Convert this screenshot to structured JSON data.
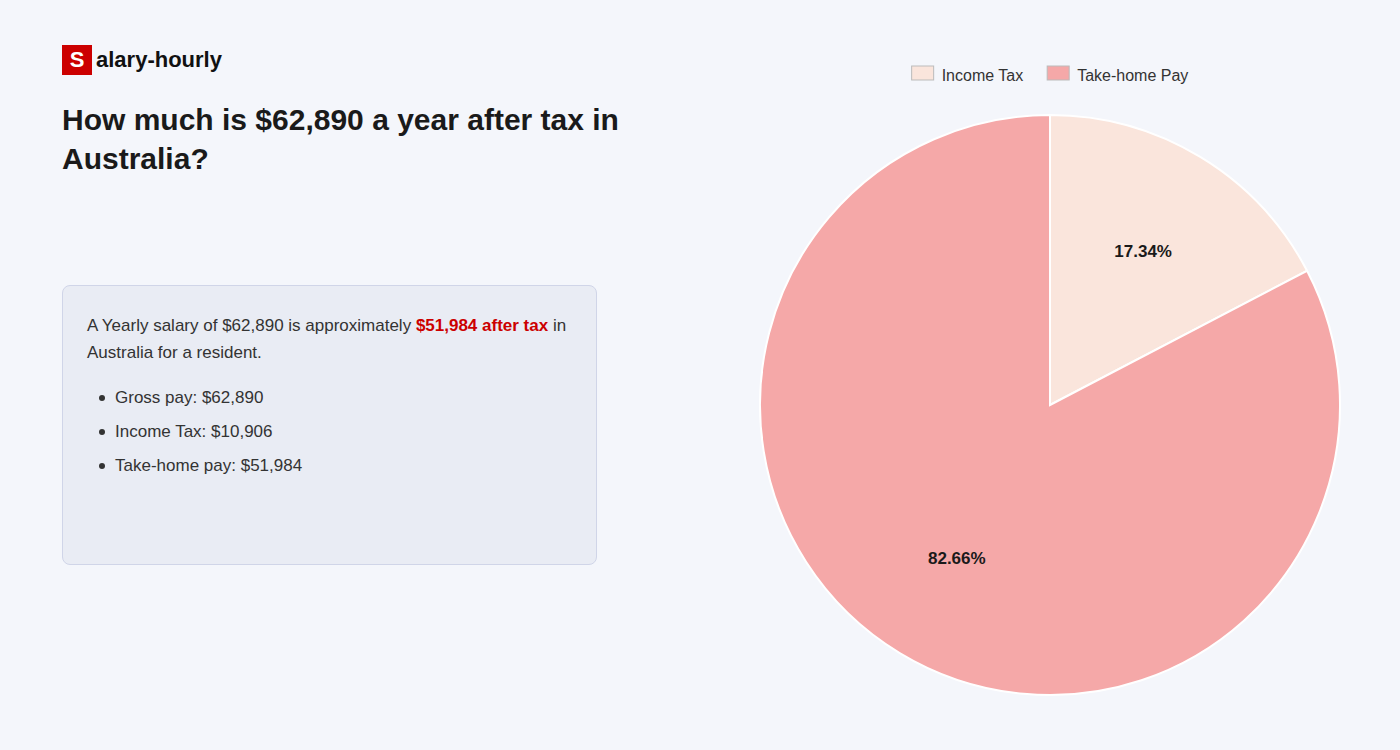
{
  "chart_data": {
    "type": "pie",
    "title": "How much is $62,890 a year after tax in Australia?",
    "annotations": [
      {
        "text": "S",
        "color": "#cc0000"
      },
      {
        "text": "alary-hourly"
      },
      {
        "text": "A Yearly salary of $62,890 is approximately "
      },
      {
        "text": "$51,984 after tax",
        "color": "#cc0000"
      },
      {
        "text": " in"
      },
      {
        "text": "Australia for a resident."
      },
      {
        "text": "Gross pay: $62,890"
      },
      {
        "text": "Income Tax: $10,906"
      },
      {
        "text": "Take-home pay: $51,984"
      }
    ],
    "categories": [
      "Income Tax",
      "Take-home Pay"
    ],
    "values": [
      17.34,
      82.66
    ],
    "value_labels": [
      "17.34%",
      "82.66%"
    ],
    "colors": [
      "#fae5dc",
      "#f5a8a8"
    ],
    "data_labels": true,
    "legend": "top"
  }
}
